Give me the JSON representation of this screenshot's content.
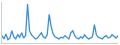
{
  "chart_data": {
    "type": "line",
    "color": "#3a8fd9",
    "x": [
      1,
      2,
      3,
      4,
      5,
      6,
      7,
      8,
      9,
      10,
      11,
      12,
      13,
      14,
      15,
      16,
      17,
      18,
      19,
      20,
      21,
      22,
      23,
      24,
      25,
      26,
      27,
      28,
      29,
      30,
      31,
      32,
      33,
      34,
      35,
      36,
      37,
      38,
      39,
      40,
      41,
      42,
      43,
      44,
      45,
      46,
      47,
      48,
      49,
      50,
      51,
      52,
      53,
      54,
      55,
      56,
      57,
      58,
      59,
      60
    ],
    "values": [
      18,
      10,
      22,
      8,
      12,
      30,
      15,
      10,
      20,
      14,
      25,
      12,
      18,
      95,
      30,
      20,
      15,
      10,
      12,
      18,
      25,
      15,
      12,
      20,
      70,
      40,
      22,
      15,
      12,
      10,
      14,
      12,
      18,
      15,
      10,
      25,
      30,
      18,
      12,
      10,
      15,
      12,
      20,
      14,
      10,
      12,
      15,
      45,
      20,
      14,
      12,
      10,
      15,
      18,
      12,
      14,
      20,
      15,
      12,
      18
    ],
    "xlim": [
      1,
      60
    ],
    "ylim": [
      0,
      100
    ],
    "grid": false,
    "tick_labels": false
  }
}
